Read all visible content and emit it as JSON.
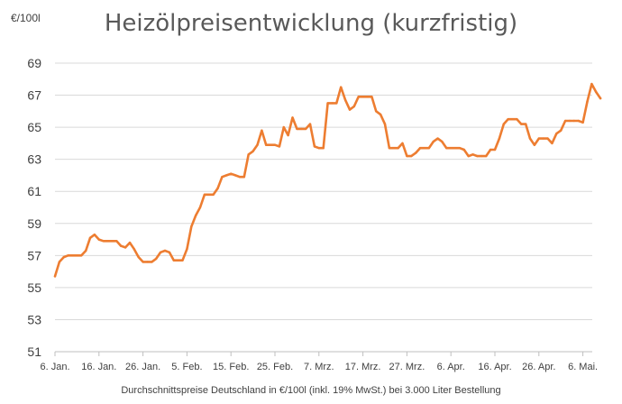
{
  "chart_data": {
    "type": "line",
    "title": "Heizölpreisentwicklung (kurzfristig)",
    "ylabel": "€/100l",
    "xlabel": "Durchschnittspreise Deutschland in €/100l (inkl. 19% MwSt.) bei 3.000 Liter Bestellung",
    "ylim": [
      51,
      69
    ],
    "yticks": [
      51,
      53,
      55,
      57,
      59,
      61,
      63,
      65,
      67,
      69
    ],
    "xticks": [
      "6. Jan.",
      "16. Jan.",
      "26. Jan.",
      "5. Feb.",
      "15. Feb.",
      "25. Feb.",
      "7. Mrz.",
      "17. Mrz.",
      "27. Mrz.",
      "6. Apr.",
      "16. Apr.",
      "26. Apr.",
      "6. Mai."
    ],
    "x_start": "6. Jan.",
    "grid": true,
    "legend": "none",
    "colors": {
      "line": "#ED7D31"
    },
    "series": [
      {
        "values": [
          55.7,
          56.6,
          56.9,
          57.0,
          57.0,
          57.0,
          57.0,
          57.3,
          58.1,
          58.3,
          58.0,
          57.9,
          57.9,
          57.9,
          57.9,
          57.6,
          57.5,
          57.8,
          57.4,
          56.9,
          56.6,
          56.6,
          56.6,
          56.8,
          57.2,
          57.3,
          57.2,
          56.7,
          56.7,
          56.7,
          57.4,
          58.8,
          59.5,
          60.0,
          60.8,
          60.8,
          60.8,
          61.2,
          61.9,
          62.0,
          62.1,
          62.0,
          61.9,
          61.9,
          63.3,
          63.5,
          63.9,
          64.8,
          63.9,
          63.9,
          63.9,
          63.8,
          65.0,
          64.5,
          65.6,
          64.9,
          64.9,
          64.9,
          65.2,
          63.8,
          63.7,
          63.7,
          66.5,
          66.5,
          66.5,
          67.5,
          66.7,
          66.1,
          66.3,
          66.9,
          66.9,
          66.9,
          66.9,
          66.0,
          65.8,
          65.2,
          63.7,
          63.7,
          63.7,
          64.0,
          63.2,
          63.2,
          63.4,
          63.7,
          63.7,
          63.7,
          64.1,
          64.3,
          64.1,
          63.7,
          63.7,
          63.7,
          63.7,
          63.6,
          63.2,
          63.3,
          63.2,
          63.2,
          63.2,
          63.6,
          63.6,
          64.3,
          65.2,
          65.5,
          65.5,
          65.5,
          65.2,
          65.2,
          64.3,
          63.9,
          64.3,
          64.3,
          64.3,
          64.0,
          64.6,
          64.8,
          65.4,
          65.4,
          65.4,
          65.4,
          65.3,
          66.6,
          67.7,
          67.2,
          66.8
        ]
      }
    ]
  }
}
